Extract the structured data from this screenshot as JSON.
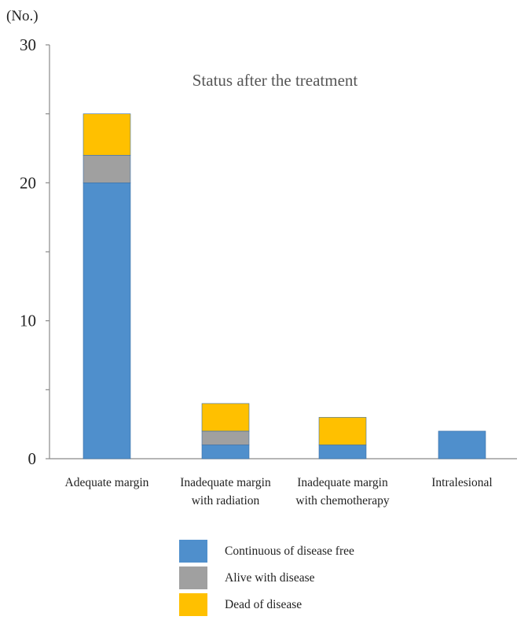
{
  "chart_data": {
    "type": "bar",
    "stacked": true,
    "title": "Status after the treatment",
    "ylabel": "(No.)",
    "xlabel": "",
    "ylim": [
      0,
      30
    ],
    "yticks": [
      0,
      10,
      20,
      30
    ],
    "grid": false,
    "legend_position": "bottom",
    "categories": [
      [
        "Adequate margin"
      ],
      [
        "Inadequate margin",
        "with radiation"
      ],
      [
        "Inadequate margin",
        "with chemotherapy"
      ],
      [
        "Intralesional"
      ]
    ],
    "series": [
      {
        "name": "Continuous of disease free",
        "color": "#4f8fcc",
        "values": [
          20,
          1,
          1,
          2
        ]
      },
      {
        "name": "Alive with disease",
        "color": "#a0a0a0",
        "values": [
          2,
          1,
          0,
          0
        ]
      },
      {
        "name": "Dead of disease",
        "color": "#ffc000",
        "values": [
          3,
          2,
          2,
          0
        ]
      }
    ]
  }
}
